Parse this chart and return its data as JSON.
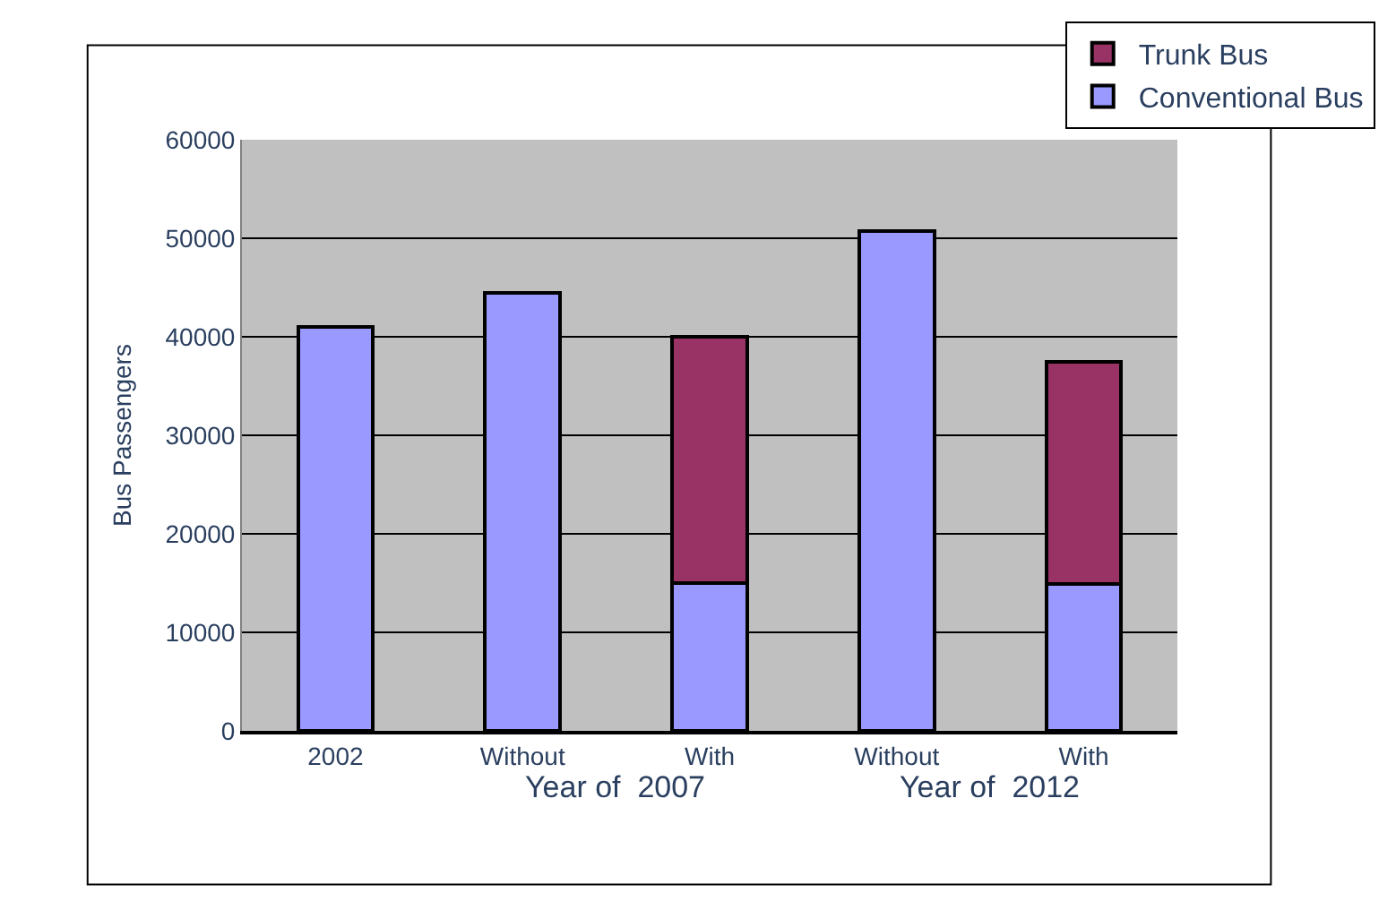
{
  "chart_data": {
    "type": "bar",
    "stacked": true,
    "ylabel": "Bus Passengers",
    "categories": [
      "2002",
      "Without",
      "With",
      "Without",
      "With"
    ],
    "series": [
      {
        "name": "Conventional Bus",
        "color": "#9999ff",
        "values": [
          41000,
          44500,
          15000,
          50700,
          14900
        ]
      },
      {
        "name": "Trunk Bus",
        "color": "#993366",
        "values": [
          null,
          null,
          25000,
          null,
          22600
        ]
      }
    ],
    "annotations": [
      "Year of  2007",
      "Year of  2012"
    ],
    "ylim": [
      0,
      60000
    ],
    "yticks": [
      0,
      10000,
      20000,
      30000,
      40000,
      50000,
      60000
    ],
    "grid": "y",
    "legend": "top right"
  }
}
